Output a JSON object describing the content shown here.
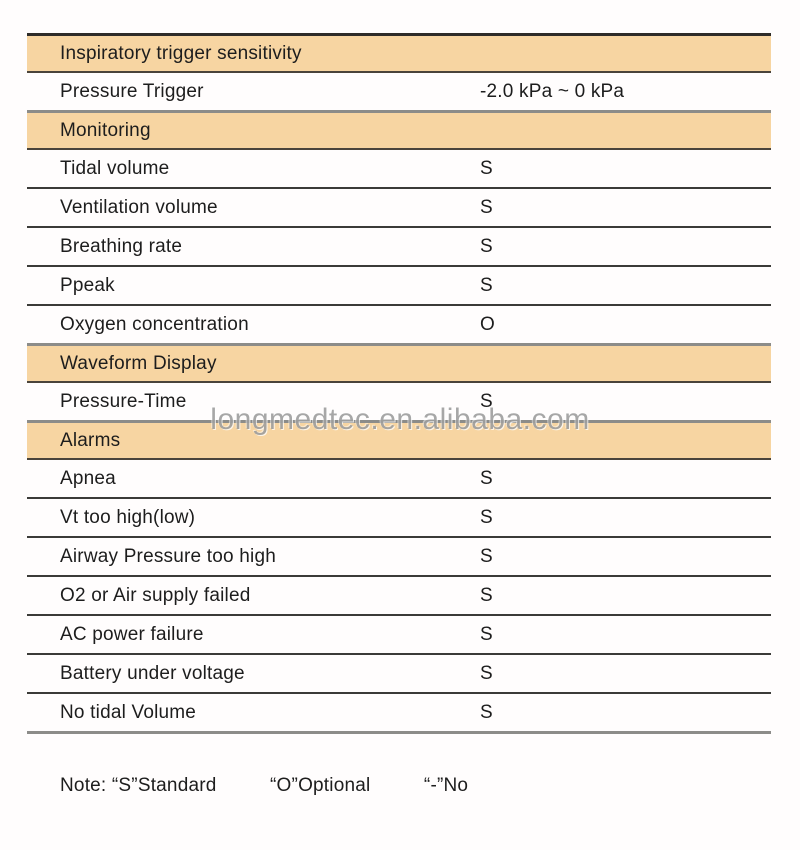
{
  "colors": {
    "section_header_bg": "#f7d5a2",
    "divider_gray": "#8c8c89",
    "divider_dark": "#3b3b38",
    "text": "#1d1d1d",
    "watermark_gray": "#9e9e9e"
  },
  "table": {
    "rows": [
      {
        "kind": "header",
        "label": "Inspiratory trigger sensitivity"
      },
      {
        "kind": "row",
        "label": "Pressure Trigger",
        "value": "-2.0 kPa ~ 0 kPa"
      },
      {
        "kind": "header",
        "label": "Monitoring"
      },
      {
        "kind": "row",
        "label": "Tidal volume",
        "value": "S"
      },
      {
        "kind": "row",
        "label": "Ventilation volume",
        "value": "S"
      },
      {
        "kind": "row",
        "label": "Breathing rate",
        "value": "S"
      },
      {
        "kind": "row",
        "label": "Ppeak",
        "value": "S"
      },
      {
        "kind": "row",
        "label": "Oxygen concentration",
        "value": "O"
      },
      {
        "kind": "header",
        "label": "Waveform Display"
      },
      {
        "kind": "row",
        "label": "Pressure-Time",
        "value": "S"
      },
      {
        "kind": "header",
        "label": "Alarms"
      },
      {
        "kind": "row",
        "label": "Apnea",
        "value": "S"
      },
      {
        "kind": "row",
        "label": "Vt too high(low)",
        "value": "S"
      },
      {
        "kind": "row",
        "label": "Airway Pressure too high",
        "value": "S"
      },
      {
        "kind": "row",
        "label": "O2 or Air supply failed",
        "value": "S"
      },
      {
        "kind": "row",
        "label": "AC power failure",
        "value": "S"
      },
      {
        "kind": "row",
        "label": "Battery under voltage",
        "value": "S"
      },
      {
        "kind": "row",
        "label": "No tidal Volume",
        "value": "S"
      }
    ]
  },
  "watermark": {
    "text": "longmedtec.en.alibaba.com"
  },
  "note": {
    "items": [
      {
        "text": "Note: “S”Standard"
      },
      {
        "text": "“O”Optional"
      },
      {
        "text": "“-”No"
      }
    ]
  }
}
